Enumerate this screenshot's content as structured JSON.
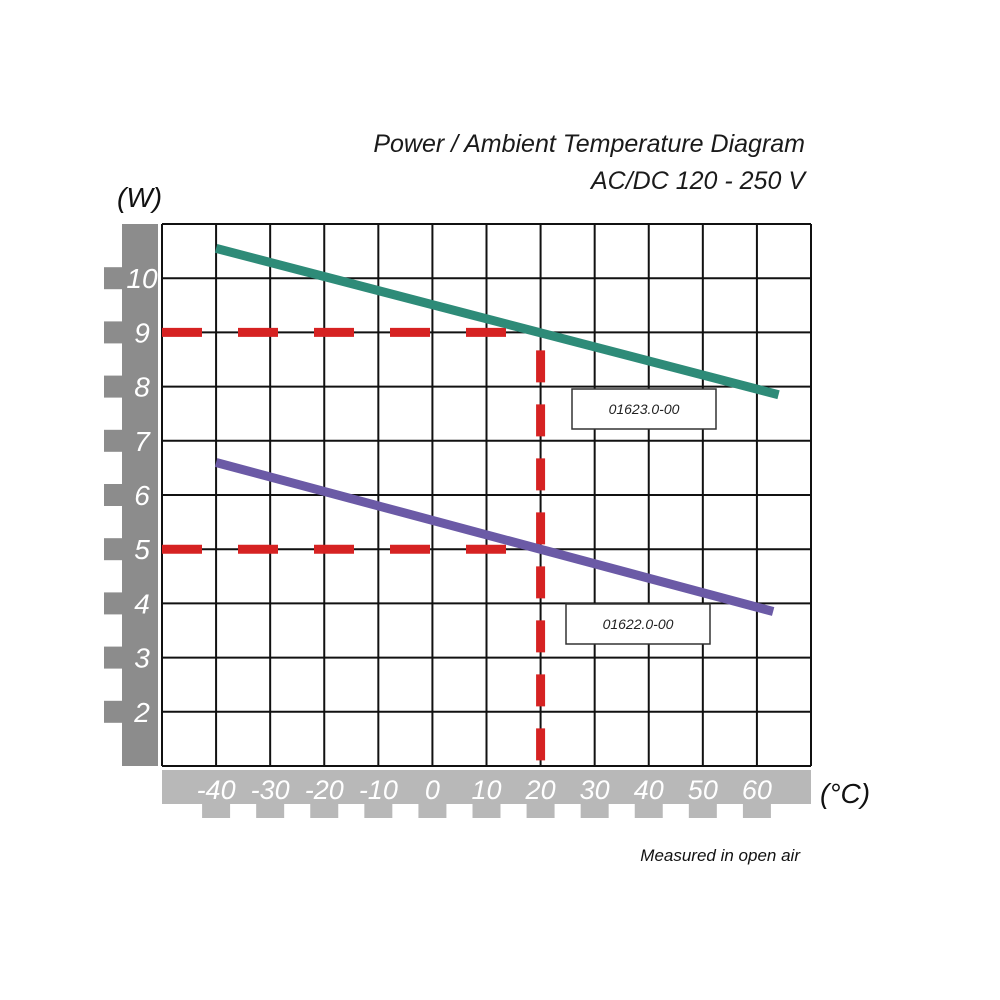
{
  "chart_data": {
    "type": "line",
    "title": "Power / Ambient Temperature Diagram",
    "subtitle": "AC/DC 120 - 250 V",
    "ylabel": "(W)",
    "xlabel": "(°C)",
    "note": "Measured in open air",
    "xlim": [
      -50,
      70
    ],
    "ylim": [
      1,
      11
    ],
    "x_ticks": [
      -40,
      -30,
      -20,
      -10,
      0,
      10,
      20,
      30,
      40,
      50,
      60
    ],
    "x_tick_labels": [
      "-40",
      "-30",
      "-20",
      "-10",
      "0",
      "10",
      "20",
      "30",
      "40",
      "50",
      "60"
    ],
    "y_ticks": [
      2,
      3,
      4,
      5,
      6,
      7,
      8,
      9,
      10
    ],
    "y_tick_labels": [
      "2",
      "3",
      "4",
      "5",
      "6",
      "7",
      "8",
      "9",
      "10"
    ],
    "grid": true,
    "series": [
      {
        "name": "01623.0-00",
        "color": "#2e8b78",
        "x": [
          -40,
          64
        ],
        "y": [
          10.55,
          7.85
        ]
      },
      {
        "name": "01622.0-00",
        "color": "#6b5aa6",
        "x": [
          -40,
          63
        ],
        "y": [
          6.6,
          3.85
        ]
      }
    ],
    "reference_lines": {
      "color": "#d62222",
      "horizontal": [
        {
          "y": 9,
          "x_from": -50,
          "x_to": 20
        },
        {
          "y": 5,
          "x_from": -50,
          "x_to": 20
        }
      ],
      "vertical": [
        {
          "x": 20,
          "y_from": 1,
          "y_to": 9
        }
      ]
    }
  }
}
